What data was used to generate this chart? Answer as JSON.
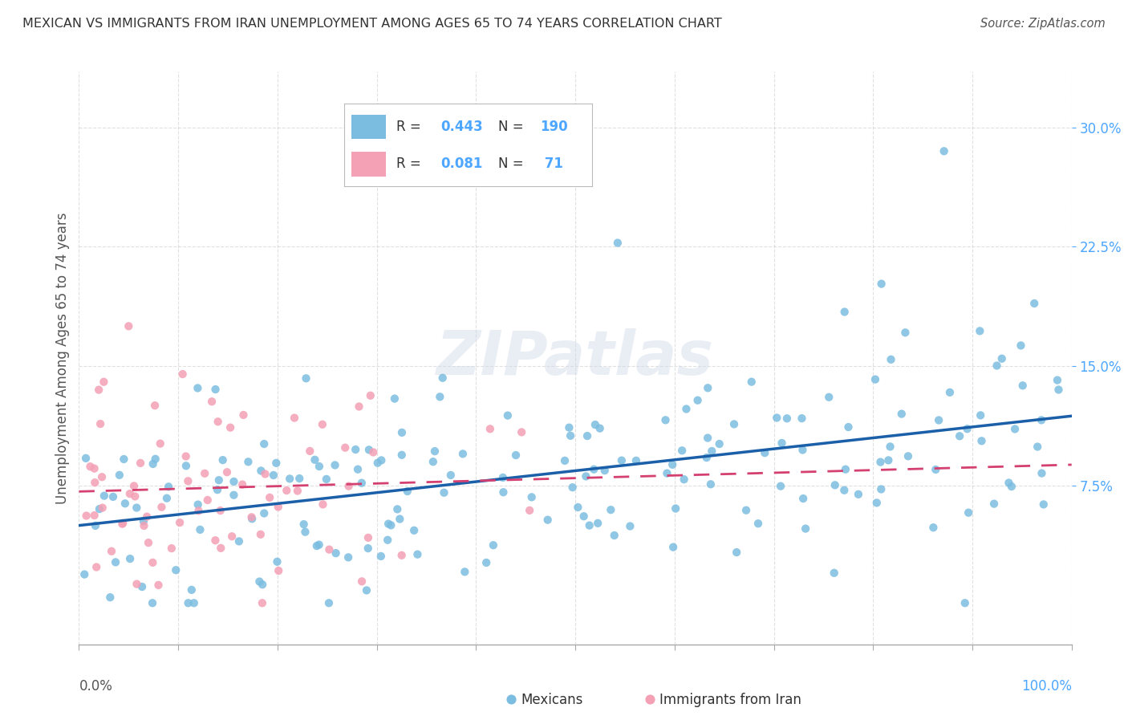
{
  "title": "MEXICAN VS IMMIGRANTS FROM IRAN UNEMPLOYMENT AMONG AGES 65 TO 74 YEARS CORRELATION CHART",
  "source": "Source: ZipAtlas.com",
  "ylabel": "Unemployment Among Ages 65 to 74 years",
  "ytick_vals": [
    0.075,
    0.15,
    0.225,
    0.3
  ],
  "ytick_labels": [
    "7.5%",
    "15.0%",
    "22.5%",
    "30.0%"
  ],
  "xtick_vals": [
    0.0,
    0.1,
    0.2,
    0.3,
    0.4,
    0.5,
    0.6,
    0.7,
    0.8,
    0.9,
    1.0
  ],
  "xlim": [
    0.0,
    1.0
  ],
  "ylim": [
    -0.025,
    0.335
  ],
  "watermark": "ZIPatlas",
  "mexicans_color": "#7bbde0",
  "iran_color": "#f4a0b5",
  "trendline_mexicans_color": "#1a5fa8",
  "trendline_iran_color": "#d44070",
  "mexicans_R": 0.443,
  "mexicans_N": 190,
  "iran_R": 0.081,
  "iran_N": 71,
  "grid_color": "#cccccc",
  "background_color": "#ffffff",
  "tick_label_color": "#4da6ff",
  "axis_label_color": "#555555",
  "title_color": "#333333",
  "source_color": "#555555"
}
